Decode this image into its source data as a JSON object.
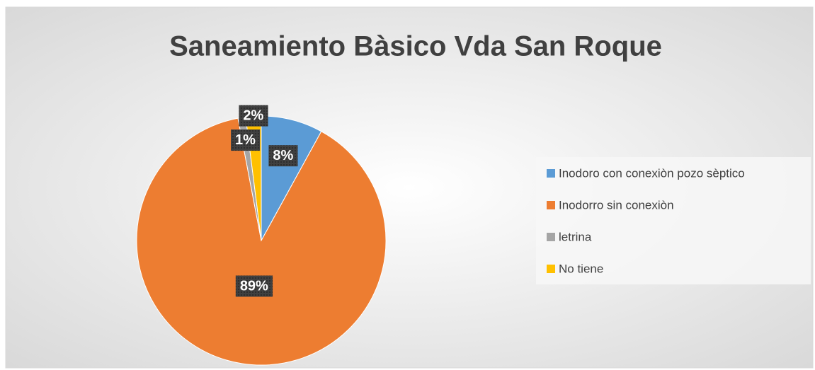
{
  "chart_data": {
    "type": "pie",
    "title": "Saneamiento Bàsico Vda San Roque",
    "categories": [
      "Inodoro con conexiòn pozo  sèptico",
      "Inodorro sin conexiòn",
      "letrina",
      "No tiene"
    ],
    "values": [
      8,
      89,
      1,
      2
    ],
    "value_labels": [
      "8%",
      "89%",
      "1%",
      "2%"
    ],
    "colors": [
      "#5b9bd5",
      "#ed7d31",
      "#a5a5a5",
      "#ffc000"
    ],
    "legend": "right"
  }
}
